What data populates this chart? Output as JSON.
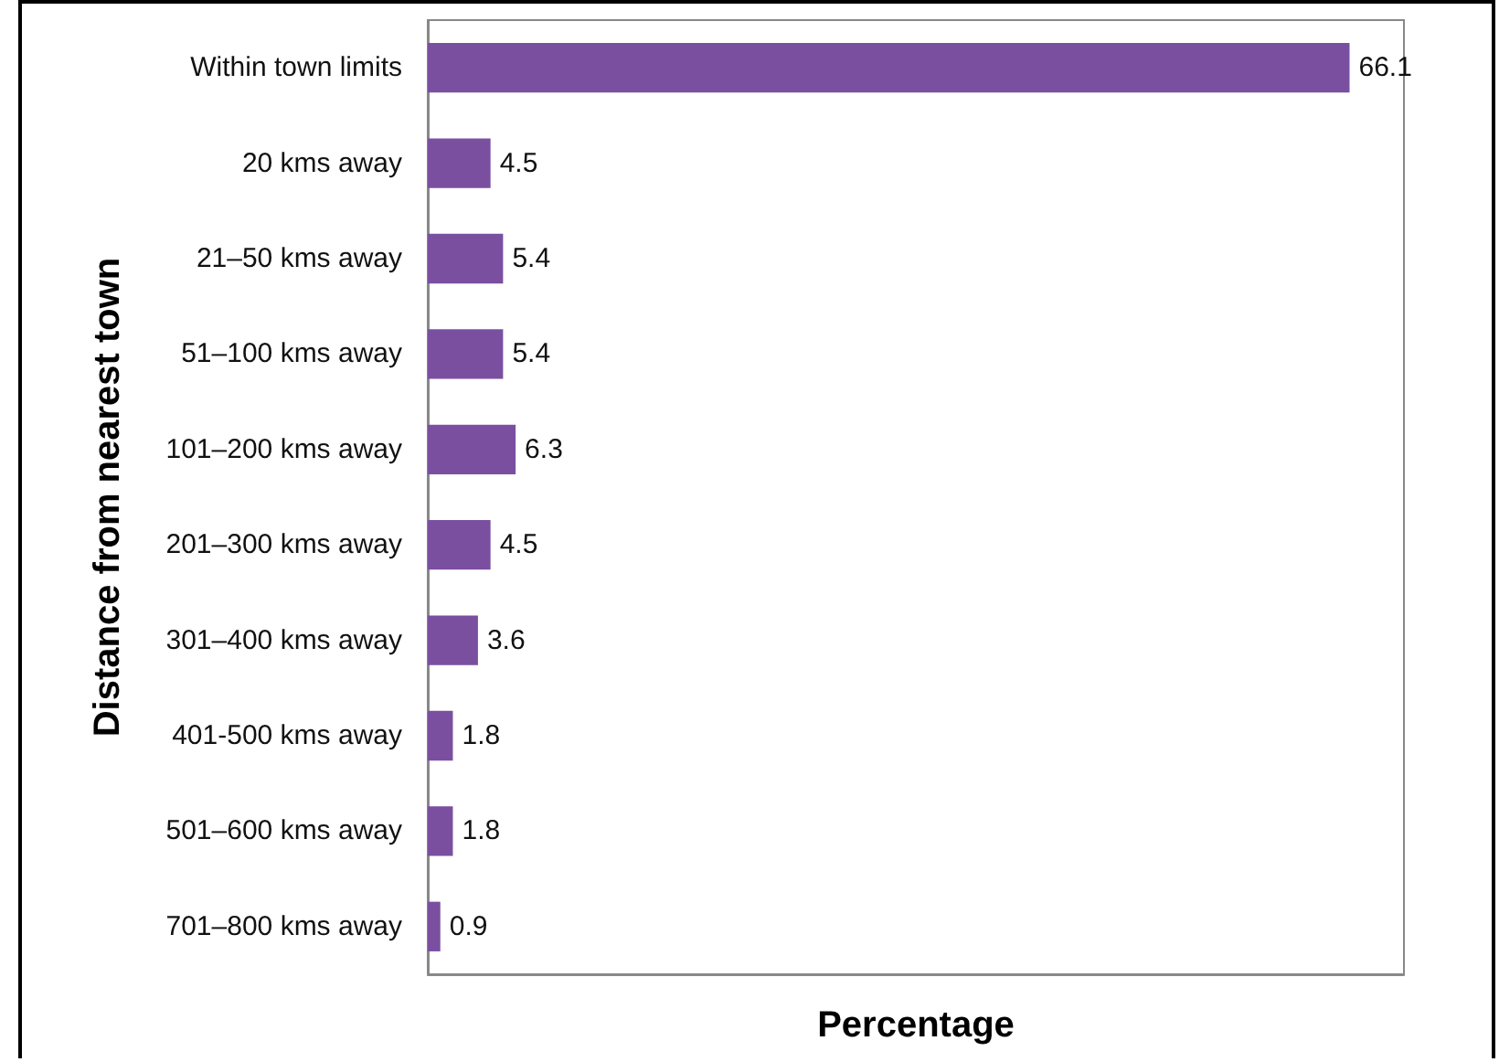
{
  "chart_data": {
    "type": "bar",
    "orientation": "horizontal",
    "xlabel": "Percentage",
    "ylabel": "Distance from nearest town",
    "categories": [
      "Within town limits",
      "20 kms away",
      "21–50 kms away",
      "51–100 kms away",
      "101–200 kms away",
      "201–300 kms away",
      "301–400 kms away",
      "401-500 kms away",
      "501–600 kms away",
      "701–800 kms away"
    ],
    "values": [
      66.1,
      4.5,
      5.4,
      5.4,
      6.3,
      4.5,
      3.6,
      1.8,
      1.8,
      0.9
    ],
    "color": "#7b4fa0",
    "xlim": [
      0,
      70
    ],
    "tick_labels": "y",
    "data_labels": true,
    "grid": false
  }
}
